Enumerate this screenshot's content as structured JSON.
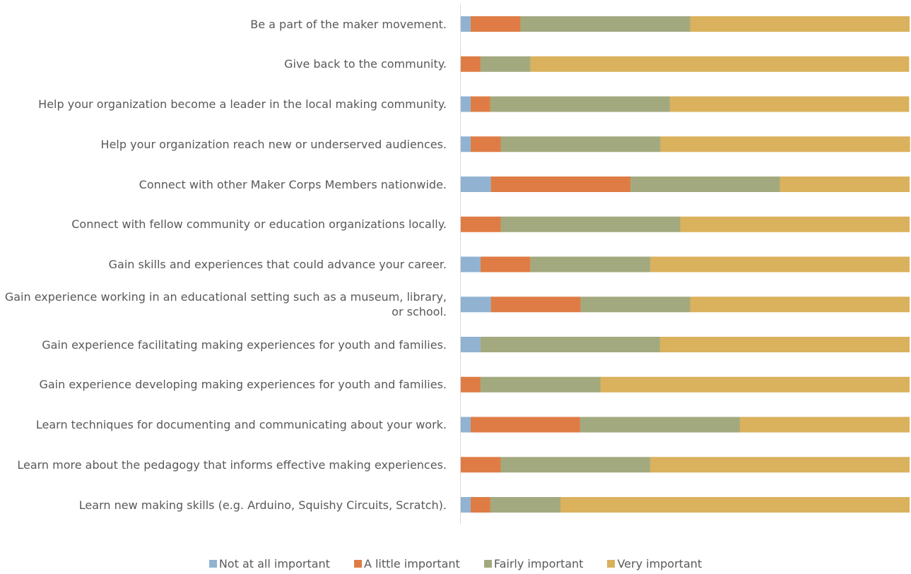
{
  "chart_data": {
    "type": "stacked_barh",
    "categories": [
      "Be a part of the maker movement.",
      "Give back to the community.",
      "Help your organization become a leader in the local making community.",
      "Help your organization reach new or underserved audiences.",
      "Connect with other Maker Corps Members nationwide.",
      "Connect with fellow community or education organizations locally.",
      "Gain skills and experiences that could advance your career.",
      "Gain experience working in an educational setting such as a museum, library, or school.",
      "Gain experience facilitating making experiences for youth and families.",
      "Gain experience developing making experiences for youth and families.",
      "Learn techniques for documenting and communicating about your work.",
      "Learn more about the pedagogy that informs effective making experiences.",
      "Learn new making skills (e.g. Arduino, Squishy Circuits, Scratch)."
    ],
    "series": [
      {
        "name": "Not at all important",
        "color": "#91b3d1",
        "values": [
          2.2,
          0,
          2.2,
          2.2,
          6.7,
          0,
          4.4,
          6.7,
          4.4,
          0,
          2.2,
          0,
          2.2
        ]
      },
      {
        "name": "A little important",
        "color": "#df7c45",
        "values": [
          11.1,
          4.4,
          4.4,
          6.7,
          31.1,
          8.9,
          11.1,
          20,
          0,
          4.4,
          24.4,
          8.9,
          4.4
        ]
      },
      {
        "name": "Fairly important",
        "color": "#a3a97f",
        "values": [
          37.8,
          11.1,
          40,
          35.6,
          33.3,
          40,
          26.7,
          24.4,
          40,
          26.7,
          35.6,
          33.3,
          15.6
        ]
      },
      {
        "name": "Very important",
        "color": "#dab15c",
        "values": [
          48.9,
          84.4,
          53.3,
          55.6,
          28.9,
          51.1,
          57.8,
          48.9,
          55.6,
          68.9,
          37.8,
          57.8,
          77.8
        ]
      }
    ],
    "xlim": [
      0,
      100
    ],
    "legend": "bottom"
  }
}
